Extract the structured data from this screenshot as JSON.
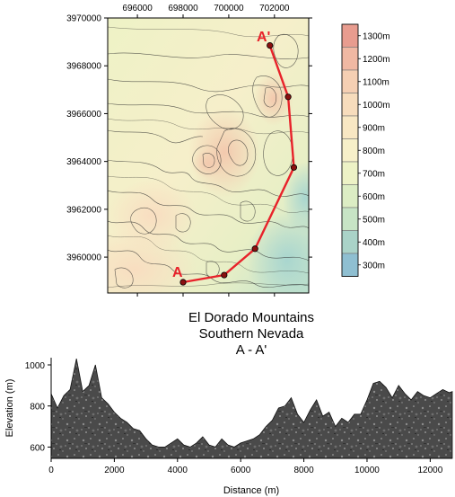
{
  "map": {
    "x_ticks": [
      "696000",
      "698000",
      "700000",
      "702000"
    ],
    "y_ticks": [
      "3970000",
      "3968000",
      "3966000",
      "3964000",
      "3962000",
      "3960000"
    ],
    "marker_start": "A",
    "marker_end": "A'",
    "profile_line_color": "#e8222a",
    "profile_points": [
      {
        "x": 698000,
        "y": 3958950
      },
      {
        "x": 699800,
        "y": 3959250
      },
      {
        "x": 701150,
        "y": 3960350
      },
      {
        "x": 702850,
        "y": 3963750
      },
      {
        "x": 702600,
        "y": 3966700
      },
      {
        "x": 701800,
        "y": 3968850
      }
    ]
  },
  "legend": {
    "levels": [
      {
        "label": "1300m",
        "color": "#e89c8f"
      },
      {
        "label": "1200m",
        "color": "#f0b8a3"
      },
      {
        "label": "1100m",
        "color": "#f5cfb3"
      },
      {
        "label": "1000m",
        "color": "#f7dcbc"
      },
      {
        "label": "900m",
        "color": "#f8e7c3"
      },
      {
        "label": "800m",
        "color": "#f7f0c9"
      },
      {
        "label": "700m",
        "color": "#edf2c6"
      },
      {
        "label": "600m",
        "color": "#dcedc4"
      },
      {
        "label": "500m",
        "color": "#c7e4c5"
      },
      {
        "label": "400m",
        "color": "#aad3c8"
      },
      {
        "label": "300m",
        "color": "#8fbfd1"
      }
    ]
  },
  "title": {
    "line1": "El Dorado Mountains",
    "line2": "Southern Nevada",
    "line3": "A - A'"
  },
  "chart_data": {
    "type": "area",
    "xlabel": "Distance (m)",
    "ylabel": "Elevation (m)",
    "xlim": [
      0,
      12700
    ],
    "ylim": [
      545,
      1035
    ],
    "x_ticks": [
      "0",
      "2000",
      "4000",
      "6000",
      "8000",
      "10000",
      "12000"
    ],
    "y_ticks": [
      "600",
      "800",
      "1000"
    ],
    "x": [
      0,
      200,
      400,
      600,
      800,
      1000,
      1200,
      1400,
      1600,
      1800,
      2000,
      2200,
      2400,
      2600,
      2800,
      3000,
      3200,
      3400,
      3600,
      3800,
      4000,
      4200,
      4400,
      4600,
      4800,
      5000,
      5200,
      5400,
      5600,
      5800,
      6000,
      6200,
      6400,
      6600,
      6800,
      7000,
      7200,
      7400,
      7600,
      7800,
      8000,
      8200,
      8400,
      8600,
      8800,
      9000,
      9200,
      9400,
      9600,
      9800,
      10000,
      10200,
      10400,
      10600,
      10800,
      11000,
      11200,
      11400,
      11600,
      11800,
      12000,
      12200,
      12400,
      12600,
      12700
    ],
    "y": [
      860,
      790,
      850,
      880,
      1030,
      870,
      900,
      1000,
      840,
      810,
      770,
      740,
      720,
      690,
      680,
      640,
      610,
      600,
      600,
      620,
      640,
      610,
      600,
      620,
      650,
      610,
      600,
      640,
      610,
      600,
      620,
      630,
      640,
      660,
      700,
      730,
      790,
      800,
      840,
      760,
      720,
      780,
      830,
      750,
      770,
      700,
      740,
      720,
      760,
      760,
      830,
      910,
      920,
      890,
      840,
      900,
      860,
      830,
      870,
      850,
      840,
      860,
      880,
      865,
      870
    ]
  }
}
